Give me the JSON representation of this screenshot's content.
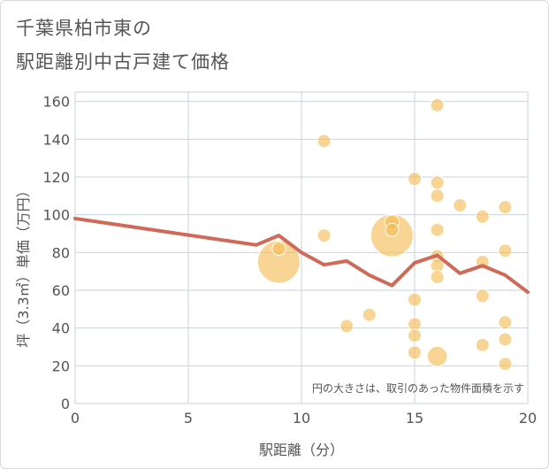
{
  "chart_data": {
    "type": "scatter",
    "title_line1": "千葉県柏市東の",
    "title_line2": "駅距離別中古戸建て価格",
    "xlabel": "駅距離（分）",
    "ylabel": "坪（3.3㎡）単価（万円）",
    "xlim": [
      0,
      20
    ],
    "ylim": [
      0,
      165
    ],
    "xticks": [
      "0",
      "5",
      "10",
      "15",
      "20"
    ],
    "yticks": [
      "0",
      "20",
      "40",
      "60",
      "80",
      "100",
      "120",
      "140",
      "160"
    ],
    "note": "円の大きさは、取引のあった物件面積を示す",
    "colors": {
      "bubble": "#f5b94e",
      "line": "#d06a58",
      "grid": "#c8d3e0",
      "text": "#555555"
    },
    "points": [
      {
        "x": 9,
        "y": 75,
        "size": 3.2
      },
      {
        "x": 9,
        "y": 82,
        "size": 1
      },
      {
        "x": 11,
        "y": 139,
        "size": 1
      },
      {
        "x": 11,
        "y": 89,
        "size": 1
      },
      {
        "x": 12,
        "y": 41,
        "size": 1
      },
      {
        "x": 13,
        "y": 47,
        "size": 1
      },
      {
        "x": 14,
        "y": 89,
        "size": 3.2
      },
      {
        "x": 14,
        "y": 96,
        "size": 1.1
      },
      {
        "x": 14,
        "y": 92,
        "size": 1
      },
      {
        "x": 15,
        "y": 119,
        "size": 1
      },
      {
        "x": 15,
        "y": 55,
        "size": 1
      },
      {
        "x": 15,
        "y": 42,
        "size": 1
      },
      {
        "x": 15,
        "y": 36,
        "size": 1
      },
      {
        "x": 15,
        "y": 27,
        "size": 1
      },
      {
        "x": 16,
        "y": 158,
        "size": 1
      },
      {
        "x": 16,
        "y": 117,
        "size": 1
      },
      {
        "x": 16,
        "y": 110,
        "size": 1
      },
      {
        "x": 16,
        "y": 92,
        "size": 1
      },
      {
        "x": 16,
        "y": 78,
        "size": 1
      },
      {
        "x": 16,
        "y": 73,
        "size": 1
      },
      {
        "x": 16,
        "y": 67,
        "size": 1
      },
      {
        "x": 16,
        "y": 25,
        "size": 1.5
      },
      {
        "x": 17,
        "y": 105,
        "size": 1
      },
      {
        "x": 18,
        "y": 99,
        "size": 1
      },
      {
        "x": 18,
        "y": 75,
        "size": 1
      },
      {
        "x": 18,
        "y": 57,
        "size": 1
      },
      {
        "x": 18,
        "y": 31,
        "size": 1
      },
      {
        "x": 19,
        "y": 104,
        "size": 1
      },
      {
        "x": 19,
        "y": 81,
        "size": 1
      },
      {
        "x": 19,
        "y": 43,
        "size": 1
      },
      {
        "x": 19,
        "y": 34,
        "size": 1
      },
      {
        "x": 19,
        "y": 21,
        "size": 1
      }
    ],
    "series": [
      {
        "name": "average",
        "x": [
          0,
          8,
          9,
          10,
          11,
          12,
          13,
          14,
          15,
          16,
          17,
          18,
          19,
          20
        ],
        "y": [
          98,
          84,
          89,
          80,
          73.5,
          75.5,
          68,
          62.5,
          74.5,
          78.5,
          69,
          73,
          68,
          59
        ]
      }
    ]
  }
}
